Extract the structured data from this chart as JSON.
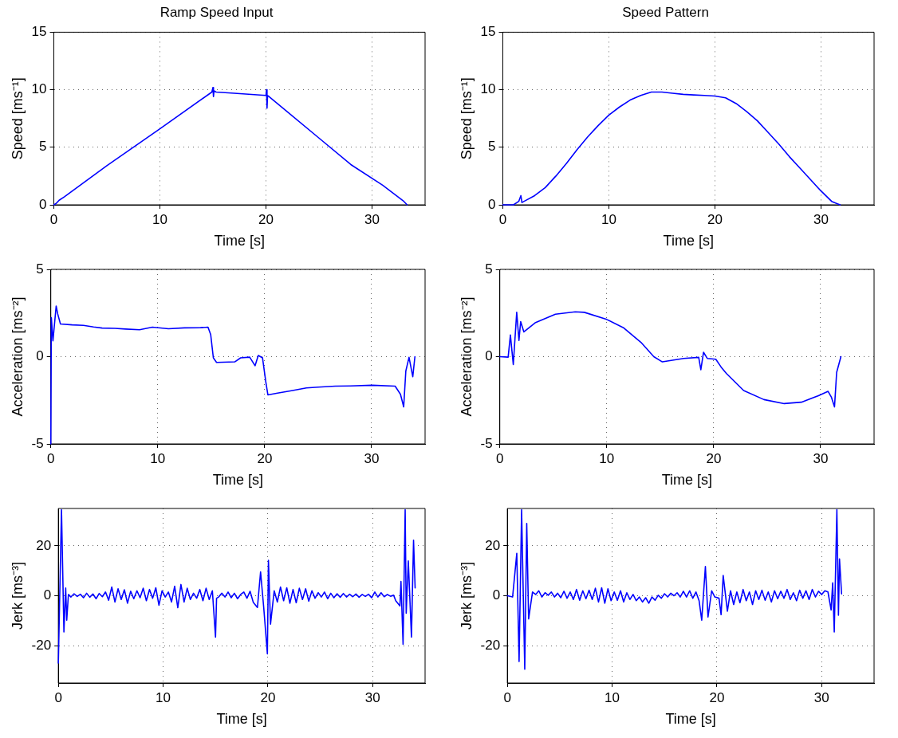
{
  "chart_data": [
    {
      "type": "line",
      "title": "Ramp Speed Input",
      "xlabel": "Time [s]",
      "ylabel": "Speed [ms⁻¹]",
      "xlim": [
        0,
        35
      ],
      "xticks": [
        0,
        10,
        20,
        30
      ],
      "ylim": [
        0,
        15
      ],
      "yticks": [
        0,
        5,
        10,
        15
      ],
      "grid": true,
      "marker": "none",
      "line_style": "solid",
      "color": "#0000ff",
      "x": [
        0,
        0.2,
        0.5,
        1,
        5,
        10,
        14.9,
        15,
        15.05,
        15.1,
        15.3,
        17,
        20,
        20.05,
        20.1,
        20.15,
        20.3,
        22,
        25,
        28,
        31,
        33,
        33.2,
        33.3
      ],
      "values": [
        0,
        0.1,
        0.4,
        0.7,
        3.4,
        6.6,
        9.8,
        10.2,
        9.4,
        9.9,
        9.8,
        9.7,
        9.5,
        10,
        8.4,
        9.5,
        9.4,
        8.1,
        5.8,
        3.5,
        1.7,
        0.3,
        0.1,
        0
      ]
    },
    {
      "type": "line",
      "title": "Speed Pattern",
      "xlabel": "Time [s]",
      "ylabel": "Speed [ms⁻¹]",
      "xlim": [
        0,
        35
      ],
      "xticks": [
        0,
        10,
        20,
        30
      ],
      "ylim": [
        0,
        15
      ],
      "yticks": [
        0,
        5,
        10,
        15
      ],
      "grid": true,
      "marker": "none",
      "line_style": "solid",
      "color": "#0000ff",
      "x": [
        0,
        1,
        1.5,
        1.7,
        1.8,
        2,
        3,
        4,
        5,
        6,
        7,
        8,
        9,
        10,
        11,
        12,
        13,
        14,
        15,
        16,
        17,
        18,
        19,
        20,
        21,
        22,
        23,
        24,
        25,
        26,
        27,
        28,
        29,
        30,
        31,
        31.5,
        31.8
      ],
      "values": [
        0,
        0,
        0.3,
        0.8,
        0.2,
        0.3,
        0.8,
        1.5,
        2.5,
        3.6,
        4.8,
        5.9,
        6.9,
        7.8,
        8.5,
        9.1,
        9.5,
        9.8,
        9.8,
        9.7,
        9.6,
        9.55,
        9.5,
        9.45,
        9.3,
        8.8,
        8.1,
        7.3,
        6.3,
        5.3,
        4.2,
        3.2,
        2.2,
        1.2,
        0.3,
        0.1,
        0
      ]
    },
    {
      "type": "line",
      "xlabel": "Time [s]",
      "ylabel": "Acceleration [ms⁻²]",
      "xlim": [
        0,
        35
      ],
      "xticks": [
        0,
        10,
        20,
        30
      ],
      "ylim": [
        -5,
        5
      ],
      "yticks": [
        -5,
        0,
        5
      ],
      "grid": true,
      "marker": "none",
      "line_style": "solid",
      "color": "#0000ff",
      "x": [
        0,
        0.05,
        0.2,
        0.5,
        0.64,
        0.9,
        2,
        3.05,
        4,
        4.8,
        6,
        7,
        8.3,
        9.5,
        11,
        12.5,
        14,
        14.7,
        14.95,
        15.2,
        15.5,
        17.2,
        17.75,
        18.6,
        19.1,
        19.4,
        19.8,
        20.1,
        20.3,
        21.2,
        22.5,
        23.9,
        25,
        26.6,
        28,
        30.05,
        32.2,
        32.7,
        33,
        33.2,
        33.5,
        33.85,
        34.05
      ],
      "values": [
        -5,
        2.24,
        0.9,
        2.9,
        2.46,
        1.87,
        1.82,
        1.79,
        1.7,
        1.64,
        1.62,
        1.58,
        1.54,
        1.69,
        1.6,
        1.65,
        1.66,
        1.69,
        1.27,
        -0.07,
        -0.33,
        -0.3,
        -0.07,
        -0.03,
        -0.52,
        0.07,
        -0.07,
        -1.42,
        -2.19,
        -2.09,
        -1.95,
        -1.79,
        -1.75,
        -1.69,
        -1.68,
        -1.64,
        -1.69,
        -2.16,
        -2.88,
        -0.82,
        -0.04,
        -1.15,
        0
      ]
    },
    {
      "type": "line",
      "xlabel": "Time [s]",
      "ylabel": "Acceleration [ms⁻²]",
      "xlim": [
        0,
        35
      ],
      "xticks": [
        0,
        10,
        20,
        30
      ],
      "ylim": [
        -5,
        5
      ],
      "yticks": [
        -5,
        0,
        5
      ],
      "grid": true,
      "marker": "none",
      "line_style": "solid",
      "color": "#0000ff",
      "x": [
        0,
        0.78,
        0.99,
        1.26,
        1.58,
        1.79,
        1.95,
        2.25,
        3.3,
        5.2,
        7.05,
        7.9,
        10,
        11.6,
        13.2,
        14.4,
        15.2,
        17.2,
        18.6,
        18.8,
        19.05,
        19.4,
        20.2,
        20.7,
        21.2,
        22.8,
        24.7,
        26.6,
        28.2,
        29.8,
        30.7,
        31,
        31.3,
        31.5,
        31.9
      ],
      "values": [
        0,
        -0.03,
        1.24,
        -0.45,
        2.54,
        0.93,
        2.01,
        1.42,
        1.94,
        2.43,
        2.57,
        2.54,
        2.13,
        1.64,
        0.82,
        0,
        -0.3,
        -0.1,
        -0.04,
        -0.75,
        0.25,
        -0.1,
        -0.15,
        -0.6,
        -0.97,
        -1.94,
        -2.46,
        -2.69,
        -2.61,
        -2.24,
        -1.99,
        -2.31,
        -2.88,
        -0.9,
        0
      ]
    },
    {
      "type": "line",
      "xlabel": "Time [s]",
      "ylabel": "Jerk [ms⁻³]",
      "xlim": [
        0,
        35
      ],
      "xticks": [
        0,
        10,
        20,
        30
      ],
      "ylim": [
        -35,
        35
      ],
      "yticks": [
        -20,
        0,
        20
      ],
      "grid": true,
      "marker": "none",
      "line_style": "solid",
      "color": "#0000ff",
      "x": [
        0,
        0.3,
        0.53,
        0.7,
        0.8,
        0.96,
        1.2,
        1.5,
        1.8,
        2.1,
        2.4,
        2.7,
        3.0,
        3.3,
        3.6,
        3.9,
        4.2,
        4.5,
        4.8,
        5.1,
        5.4,
        5.7,
        6.0,
        6.3,
        6.6,
        6.9,
        7.2,
        7.5,
        7.8,
        8.1,
        8.4,
        8.7,
        9.0,
        9.3,
        9.6,
        9.9,
        10.2,
        10.5,
        10.8,
        11.1,
        11.4,
        11.7,
        12.0,
        12.3,
        12.6,
        12.9,
        13.2,
        13.5,
        13.8,
        14.1,
        14.4,
        14.7,
        15.0,
        15.1,
        15.3,
        15.6,
        15.9,
        16.2,
        16.5,
        16.8,
        17.1,
        17.4,
        17.7,
        18.0,
        18.3,
        18.6,
        19.0,
        19.3,
        19.6,
        19.95,
        20.05,
        20.25,
        20.6,
        20.9,
        21.2,
        21.5,
        21.8,
        22.1,
        22.4,
        22.7,
        23.0,
        23.3,
        23.6,
        23.9,
        24.2,
        24.5,
        24.8,
        25.1,
        25.4,
        25.7,
        26.0,
        26.3,
        26.6,
        26.9,
        27.2,
        27.5,
        27.8,
        28.1,
        28.4,
        28.7,
        29.0,
        29.3,
        29.6,
        29.9,
        30.2,
        30.5,
        30.8,
        31.1,
        31.4,
        31.7,
        32.0,
        32.2,
        32.6,
        32.7,
        32.9,
        33.1,
        33.2,
        33.4,
        33.7,
        33.9,
        34.05
      ],
      "values": [
        -27,
        34.5,
        -14.5,
        3.1,
        -9.8,
        0.5,
        -0.5,
        0.8,
        -0.3,
        0.6,
        -0.8,
        1.0,
        -0.6,
        0.7,
        -1.2,
        0.9,
        -0.4,
        1.5,
        -1.8,
        3.5,
        -2.5,
        2.8,
        -1.5,
        2.4,
        -3.0,
        1.8,
        -1.2,
        2.0,
        -0.8,
        3.0,
        -2.0,
        2.5,
        -1.0,
        3.2,
        -3.8,
        2.0,
        -0.5,
        1.5,
        -2.5,
        3.8,
        -4.8,
        4.5,
        -2.5,
        3.0,
        -1.5,
        1.0,
        -1.0,
        2.5,
        -2.0,
        3.0,
        -1.5,
        2.0,
        -16.6,
        -1,
        -0.5,
        1,
        -0.5,
        1.5,
        -0.8,
        1.0,
        -1.2,
        0.5,
        1.5,
        -1.0,
        1.8,
        -2.6,
        -4.7,
        9.6,
        -4.7,
        -23.3,
        14.2,
        -11.4,
        2,
        -2.5,
        3.5,
        -2.0,
        3.2,
        -3.0,
        2.5,
        -2.8,
        3.0,
        -1.5,
        2.8,
        -2.2,
        2.0,
        -1.0,
        1.2,
        -0.5,
        1.5,
        -1.2,
        1.0,
        -0.8,
        0.8,
        -0.6,
        0.9,
        -0.5,
        0.6,
        -0.4,
        0.7,
        -0.6,
        0.5,
        -0.3,
        0.6,
        -0.8,
        1.5,
        -0.5,
        1.2,
        -0.4,
        0.5,
        -0.2,
        0.2,
        -2,
        -4.1,
        5.7,
        -19.5,
        34.5,
        -7,
        14,
        -16.6,
        22.3,
        3.1
      ]
    },
    {
      "type": "line",
      "xlabel": "Time [s]",
      "ylabel": "Jerk [ms⁻³]",
      "xlim": [
        0,
        35
      ],
      "xticks": [
        0,
        10,
        20,
        30
      ],
      "ylim": [
        -35,
        35
      ],
      "yticks": [
        -20,
        0,
        20
      ],
      "grid": true,
      "marker": "none",
      "line_style": "solid",
      "color": "#0000ff",
      "x": [
        0,
        0.5,
        0.9,
        1.12,
        1.36,
        1.66,
        1.85,
        2.03,
        2.4,
        2.7,
        3.0,
        3.3,
        3.6,
        3.9,
        4.2,
        4.5,
        4.8,
        5.1,
        5.4,
        5.7,
        6.0,
        6.3,
        6.6,
        6.9,
        7.2,
        7.5,
        7.8,
        8.1,
        8.4,
        8.7,
        9.0,
        9.3,
        9.6,
        9.9,
        10.2,
        10.5,
        10.8,
        11.1,
        11.4,
        11.7,
        12.0,
        12.3,
        12.6,
        12.9,
        13.2,
        13.5,
        13.8,
        14.1,
        14.4,
        14.7,
        15.0,
        15.3,
        15.6,
        15.9,
        16.2,
        16.5,
        16.8,
        17.1,
        17.4,
        17.7,
        18.0,
        18.3,
        18.55,
        18.9,
        19.15,
        19.5,
        19.8,
        20.2,
        20.4,
        20.6,
        21.0,
        21.3,
        21.6,
        21.9,
        22.2,
        22.5,
        22.8,
        23.1,
        23.4,
        23.7,
        24.0,
        24.3,
        24.6,
        24.9,
        25.2,
        25.5,
        25.8,
        26.1,
        26.4,
        26.7,
        27.0,
        27.3,
        27.6,
        27.9,
        28.2,
        28.5,
        28.8,
        29.1,
        29.4,
        29.7,
        30.0,
        30.3,
        30.6,
        30.9,
        31.05,
        31.2,
        31.45,
        31.6,
        31.7,
        31.9
      ],
      "values": [
        0,
        -0.5,
        17,
        -26.4,
        34.5,
        -29.5,
        29,
        -9.3,
        1.5,
        0.5,
        2.0,
        -0.5,
        1.2,
        0.2,
        1.5,
        -0.5,
        1.0,
        -0.8,
        1.8,
        -1.0,
        1.5,
        -1.5,
        2.5,
        -1.8,
        2.0,
        -1.2,
        2.2,
        -1.5,
        3.0,
        -2.5,
        3.2,
        -3.0,
        2.8,
        -2.0,
        1.5,
        -1.8,
        2.0,
        -2.5,
        1.2,
        -1.5,
        0.5,
        -2.0,
        -0.5,
        -2.5,
        -0.8,
        -3.0,
        -0.5,
        -1.8,
        0.2,
        -1.0,
        0.8,
        -0.5,
        1.0,
        0,
        1.2,
        -0.5,
        1.8,
        -0.5,
        2.0,
        -1.0,
        1.5,
        -2.0,
        -9.8,
        11.7,
        -8.5,
        2,
        -0.5,
        -1,
        -7.6,
        8.1,
        -6.2,
        2.0,
        -3.5,
        1.5,
        -2.8,
        2.5,
        -2.0,
        1.5,
        -3.5,
        2.0,
        -1.5,
        2.2,
        -1.8,
        1.5,
        -2.5,
        2.0,
        -1.2,
        1.8,
        -1.0,
        2.5,
        -1.5,
        1.2,
        -2.0,
        2.2,
        -1.0,
        2.0,
        -1.5,
        2.5,
        -0.5,
        1.8,
        0.5,
        2.0,
        1.5,
        -5.7,
        5.2,
        -14.5,
        34.5,
        -7.8,
        14.8,
        0.7
      ]
    }
  ]
}
